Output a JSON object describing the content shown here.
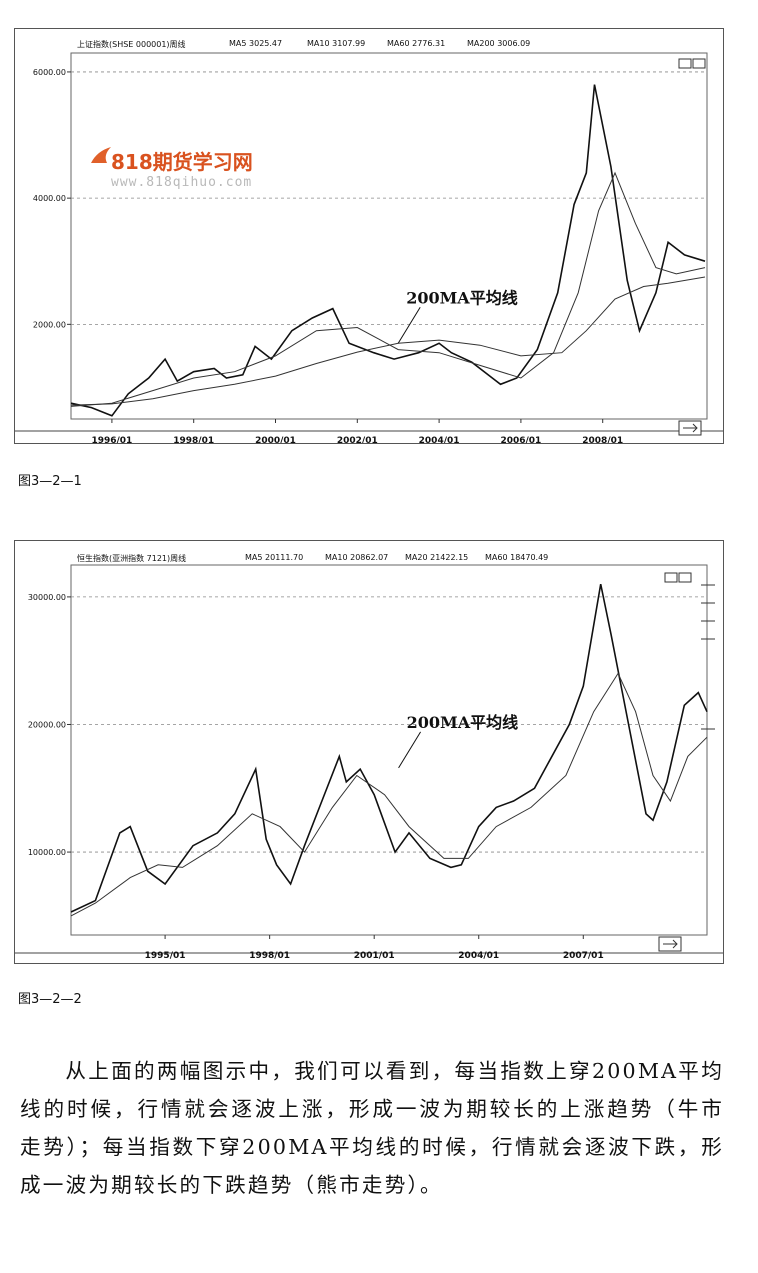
{
  "watermark": {
    "brand": "818期货学习网",
    "url": "www.818qihuo.com"
  },
  "figures": [
    {
      "header": {
        "title": "上证指数(SHSE 000001)周线",
        "ma": [
          "MA5 3025.47",
          "MA10 3107.99",
          "MA60 2776.31",
          "MA200 3006.09"
        ]
      },
      "annotation": "200MA平均线",
      "caption": "图3—2—1"
    },
    {
      "header": {
        "title": "恒生指数(亚洲指数 7121)周线",
        "ma": [
          "MA5 20111.70",
          "MA10 20862.07",
          "MA20 21422.15",
          "MA60 18470.49"
        ]
      },
      "annotation": "200MA平均线",
      "caption": "图3—2—2"
    }
  ],
  "paragraph": "从上面的两幅图示中，我们可以看到，每当指数上穿200MA平均线的时候，行情就会逐波上涨，形成一波为期较长的上涨趋势（牛市走势）；每当指数下穿200MA平均线的时候，行情就会逐波下跌，形成一波为期较长的下跌趋势（熊市走势）。",
  "chart_data": [
    {
      "type": "line",
      "ylim": [
        500,
        6300
      ],
      "xlim": [
        1995.0,
        2010.55
      ],
      "grid": true,
      "ytick_labels": [
        "6000.00",
        "4000.00",
        "2000.00"
      ],
      "yticks": [
        6000,
        4000,
        2000
      ],
      "xtick_labels": [
        "1996/01",
        "1998/01",
        "2000/01",
        "2002/01",
        "2004/01",
        "2006/01",
        "2008/01"
      ],
      "xticks": [
        1996,
        1998,
        2000,
        2002,
        2004,
        2006,
        2008
      ],
      "annotation_point": [
        2003.0,
        1700
      ],
      "series": [
        {
          "x": [
            1995.0,
            1995.5,
            1996.0,
            1996.4,
            1996.9,
            1997.3,
            1997.6,
            1998.0,
            1998.5,
            1998.8,
            1999.2,
            1999.5,
            1999.9,
            2000.4,
            2000.9,
            2001.4,
            2001.8,
            2002.4,
            2002.9,
            2003.5,
            2004.0,
            2004.3,
            2004.8,
            2005.3,
            2005.5,
            2005.9,
            2006.4,
            2006.9,
            2007.3,
            2007.6,
            2007.8,
            2008.2,
            2008.6,
            2008.9,
            2009.3,
            2009.6,
            2010.0,
            2010.5
          ],
          "values": [
            750,
            680,
            550,
            900,
            1150,
            1450,
            1100,
            1250,
            1300,
            1150,
            1200,
            1650,
            1450,
            1900,
            2100,
            2250,
            1700,
            1550,
            1450,
            1550,
            1700,
            1550,
            1400,
            1150,
            1050,
            1150,
            1600,
            2500,
            3900,
            4400,
            5800,
            4500,
            2700,
            1900,
            2500,
            3300,
            3100,
            3000
          ]
        },
        {
          "x": [
            1995.0,
            1996.0,
            1997.0,
            1998.0,
            1999.0,
            2000.0,
            2001.0,
            2002.0,
            2003.0,
            2004.0,
            2005.0,
            2006.0,
            2006.8,
            2007.4,
            2007.9,
            2008.3,
            2008.8,
            2009.3,
            2009.8,
            2010.5
          ],
          "values": [
            700,
            750,
            950,
            1150,
            1250,
            1500,
            1900,
            1950,
            1600,
            1550,
            1350,
            1150,
            1550,
            2500,
            3800,
            4400,
            3600,
            2900,
            2800,
            2900
          ]
        },
        {
          "x": [
            1995.0,
            1996.0,
            1997.0,
            1998.0,
            1999.0,
            2000.0,
            2001.0,
            2002.0,
            2003.0,
            2004.0,
            2005.0,
            2006.0,
            2007.0,
            2007.6,
            2008.3,
            2009.0,
            2009.6,
            2010.5
          ],
          "values": [
            720,
            740,
            820,
            950,
            1050,
            1180,
            1380,
            1560,
            1700,
            1750,
            1670,
            1500,
            1550,
            1900,
            2400,
            2600,
            2650,
            2750
          ]
        }
      ]
    },
    {
      "type": "line",
      "ylim": [
        3500,
        32500
      ],
      "xlim": [
        1992.3,
        2010.55
      ],
      "grid": true,
      "ytick_labels": [
        "30000.00",
        "20000.00",
        "10000.00"
      ],
      "yticks": [
        30000,
        20000,
        10000
      ],
      "xtick_labels": [
        "1995/01",
        "1998/01",
        "2001/01",
        "2004/01",
        "2007/01"
      ],
      "xticks": [
        1995,
        1998,
        2001,
        2004,
        2007
      ],
      "annotation_point": [
        2001.7,
        16600
      ],
      "series": [
        {
          "x": [
            1992.3,
            1993.0,
            1993.7,
            1994.0,
            1994.5,
            1995.0,
            1995.8,
            1996.5,
            1997.0,
            1997.6,
            1997.9,
            1998.2,
            1998.6,
            1999.0,
            1999.5,
            2000.0,
            2000.2,
            2000.6,
            2001.0,
            2001.6,
            2002.0,
            2002.6,
            2003.2,
            2003.5,
            2004.0,
            2004.5,
            2005.0,
            2005.6,
            2006.0,
            2006.6,
            2007.0,
            2007.5,
            2007.8,
            2008.3,
            2008.8,
            2009.0,
            2009.4,
            2009.9,
            2010.3,
            2010.55
          ],
          "values": [
            5300,
            6200,
            11500,
            12000,
            8500,
            7500,
            10500,
            11500,
            13000,
            16500,
            11000,
            9000,
            7500,
            10500,
            14000,
            17500,
            15500,
            16500,
            14500,
            10000,
            11500,
            9500,
            8800,
            9000,
            12000,
            13500,
            14000,
            15000,
            17000,
            20000,
            23000,
            31000,
            27000,
            20000,
            13000,
            12500,
            15500,
            21500,
            22500,
            21000
          ]
        },
        {
          "x": [
            1992.3,
            1993.0,
            1994.0,
            1994.8,
            1995.5,
            1996.5,
            1997.5,
            1998.3,
            1999.0,
            1999.8,
            2000.5,
            2001.3,
            2002.0,
            2003.0,
            2003.7,
            2004.5,
            2005.5,
            2006.5,
            2007.3,
            2008.0,
            2008.5,
            2009.0,
            2009.5,
            2010.0,
            2010.55
          ],
          "values": [
            5000,
            6000,
            8000,
            9000,
            8800,
            10500,
            13000,
            12000,
            10000,
            13500,
            16000,
            14500,
            12000,
            9500,
            9500,
            12000,
            13500,
            16000,
            21000,
            24000,
            21000,
            16000,
            14000,
            17500,
            19000
          ]
        }
      ]
    }
  ]
}
